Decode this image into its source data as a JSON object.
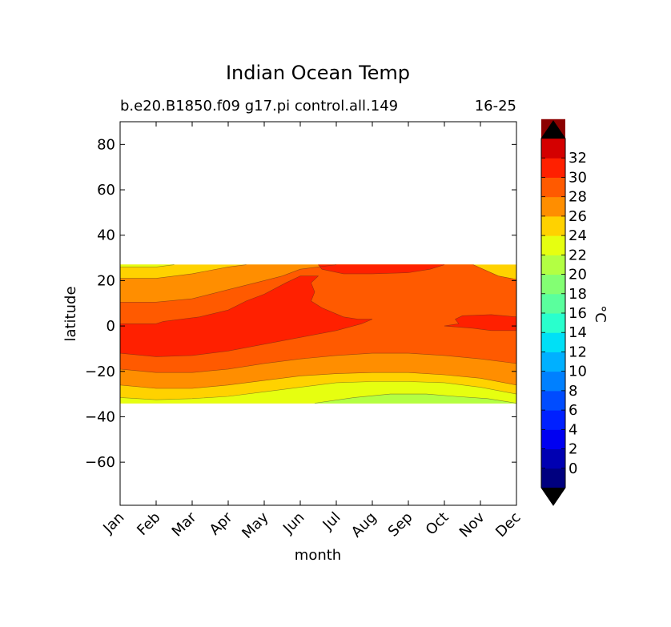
{
  "chart_data": {
    "type": "heatmap",
    "style": "filled-contour",
    "title": "Indian Ocean Temp",
    "subtitle_left": "b.e20.B1850.f09 g17.pi control.all.149",
    "subtitle_right": "16-25",
    "xlabel": "month",
    "ylabel": "latitude",
    "x_ticks": [
      "Jan",
      "Feb",
      "Mar",
      "Apr",
      "May",
      "Jun",
      "Jul",
      "Aug",
      "Sep",
      "Oct",
      "Nov",
      "Dec"
    ],
    "y_ticks": [
      80,
      60,
      40,
      20,
      0,
      -20,
      -40,
      -60
    ],
    "y_tick_labels": [
      "80",
      "60",
      "40",
      "20",
      "0",
      "−20",
      "−40",
      "−60"
    ],
    "ylim": [
      -79,
      90
    ],
    "xlim": [
      0,
      11
    ],
    "data_lat_range": [
      -34,
      27
    ],
    "grid": false,
    "colorbar": {
      "label": "°C",
      "tick_values": [
        0,
        2,
        4,
        6,
        8,
        10,
        12,
        14,
        16,
        18,
        20,
        22,
        24,
        26,
        28,
        30,
        32
      ],
      "tick_labels": [
        "0",
        "2",
        "4",
        "6",
        "8",
        "10",
        "12",
        "14",
        "16",
        "18",
        "20",
        "22",
        "24",
        "26",
        "28",
        "30",
        "32"
      ],
      "range": [
        -2,
        34
      ],
      "extend": "both",
      "level_colors": [
        "#00007f",
        "#0000b2",
        "#0000f1",
        "#0020ff",
        "#004cff",
        "#0080ff",
        "#00b0ff",
        "#00e0f6",
        "#29ffcd",
        "#5aff9d",
        "#83ff73",
        "#b3ff43",
        "#e6ff10",
        "#ffd200",
        "#ff8e00",
        "#ff5a00",
        "#ff2000",
        "#d40000",
        "#8c0000"
      ],
      "under_color": "#000000",
      "over_color": "#000000"
    },
    "level_palette": {
      "18-20": "#b3ff43",
      "20-22": "#e6ff10",
      "22-24": "#ffd200",
      "24-26": "#ff8e00",
      "26-28": "#ff5a00",
      "28-30": "#ff2000"
    },
    "contour_lines": [
      {
        "level": 20,
        "region": "south",
        "points": [
          [
            5.4,
            -34
          ],
          [
            6.5,
            -31.5
          ],
          [
            7.5,
            -30
          ],
          [
            8.5,
            -30
          ],
          [
            9.3,
            -31
          ],
          [
            10.2,
            -32
          ],
          [
            11,
            -34
          ]
        ]
      },
      {
        "level": 22,
        "region": "south",
        "points": [
          [
            0,
            -31.5
          ],
          [
            1,
            -32.5
          ],
          [
            2,
            -32
          ],
          [
            3,
            -31
          ],
          [
            4,
            -29
          ],
          [
            5,
            -27
          ],
          [
            6,
            -25
          ],
          [
            7,
            -24.5
          ],
          [
            8,
            -24.5
          ],
          [
            9,
            -25
          ],
          [
            10,
            -27
          ],
          [
            11,
            -30
          ]
        ]
      },
      {
        "level": 24,
        "region": "south",
        "points": [
          [
            0,
            -26
          ],
          [
            1,
            -27.5
          ],
          [
            2,
            -27.5
          ],
          [
            3,
            -26
          ],
          [
            4,
            -24
          ],
          [
            5,
            -22
          ],
          [
            6,
            -21
          ],
          [
            7,
            -20.5
          ],
          [
            8,
            -20.5
          ],
          [
            9,
            -21.5
          ],
          [
            10,
            -23
          ],
          [
            11,
            -26
          ]
        ]
      },
      {
        "level": 26,
        "region": "south",
        "points": [
          [
            0,
            -19
          ],
          [
            1,
            -20.5
          ],
          [
            2,
            -20.5
          ],
          [
            3,
            -19
          ],
          [
            4,
            -16.5
          ],
          [
            5,
            -14.5
          ],
          [
            6,
            -13
          ],
          [
            7,
            -12
          ],
          [
            8,
            -12
          ],
          [
            9,
            -13
          ],
          [
            10,
            -14.5
          ],
          [
            11,
            -16.5
          ]
        ]
      },
      {
        "level": 28,
        "region": "south",
        "points": [
          [
            0,
            -12
          ],
          [
            1,
            -13.5
          ],
          [
            2,
            -13
          ],
          [
            3,
            -11
          ],
          [
            4,
            -8
          ],
          [
            5,
            -5
          ],
          [
            6,
            -2
          ],
          [
            6.7,
            1
          ],
          [
            7,
            3
          ]
        ]
      },
      {
        "level": 28,
        "region": "north",
        "points": [
          [
            0,
            1
          ],
          [
            1,
            1
          ],
          [
            1.2,
            2
          ],
          [
            2.2,
            4
          ],
          [
            3,
            7
          ],
          [
            3.5,
            11
          ],
          [
            4,
            14
          ],
          [
            4.6,
            19
          ],
          [
            5,
            22
          ],
          [
            5.5,
            22
          ],
          [
            5.3,
            19
          ],
          [
            5.4,
            15
          ],
          [
            5.3,
            11
          ],
          [
            5.6,
            8
          ],
          [
            6.2,
            4
          ],
          [
            6.6,
            3
          ],
          [
            7,
            3
          ]
        ]
      },
      {
        "level": 28,
        "region": "east",
        "points": [
          [
            11,
            4
          ],
          [
            10.3,
            5
          ],
          [
            9.5,
            4.5
          ],
          [
            9.3,
            3
          ],
          [
            9.4,
            1
          ],
          [
            9,
            0
          ],
          [
            9.8,
            -1
          ],
          [
            10.3,
            -2
          ],
          [
            11,
            -2
          ]
        ]
      },
      {
        "level": 28,
        "region": "top",
        "points": [
          [
            5.5,
            27
          ],
          [
            5.6,
            25
          ],
          [
            6.2,
            23
          ],
          [
            7,
            23
          ],
          [
            8,
            23.5
          ],
          [
            8.6,
            25
          ],
          [
            9,
            27
          ]
        ]
      },
      {
        "level": 26,
        "region": "north",
        "points": [
          [
            0,
            10.5
          ],
          [
            1,
            10.5
          ],
          [
            2,
            12
          ],
          [
            3,
            16
          ],
          [
            4,
            20
          ],
          [
            4.5,
            22
          ],
          [
            5,
            25
          ],
          [
            6,
            27
          ]
        ]
      },
      {
        "level": 26,
        "region": "east",
        "points": [
          [
            9.8,
            27
          ],
          [
            10.5,
            22
          ],
          [
            11,
            20.5
          ]
        ]
      },
      {
        "level": 24,
        "region": "north",
        "points": [
          [
            0,
            21
          ],
          [
            1,
            21
          ],
          [
            2,
            23
          ],
          [
            3,
            26
          ],
          [
            3.5,
            27
          ]
        ]
      },
      {
        "level": 22,
        "region": "north",
        "points": [
          [
            0,
            26
          ],
          [
            1,
            26
          ],
          [
            1.5,
            27
          ]
        ]
      }
    ]
  }
}
